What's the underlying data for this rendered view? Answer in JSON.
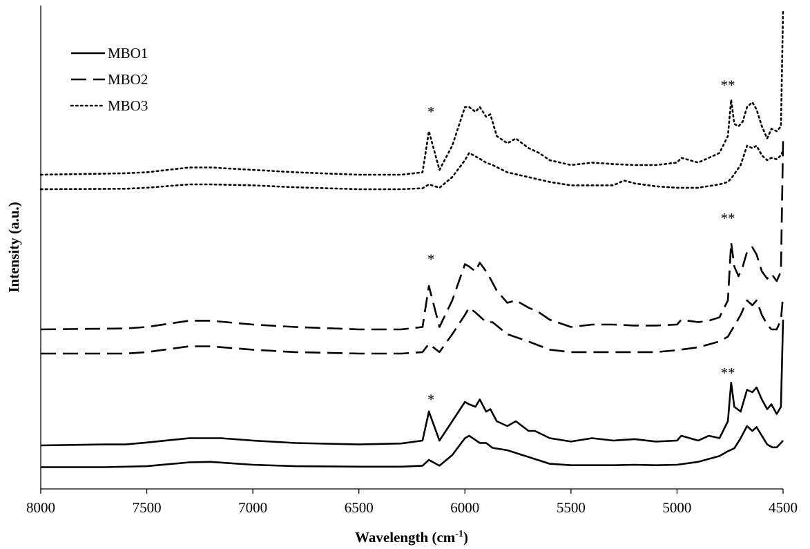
{
  "chart_data": {
    "type": "line",
    "title": "",
    "xlabel": {
      "text": "Wavelength (cm",
      "sup": "-1",
      "close": ")"
    },
    "ylabel": "Intensity (a.u.)",
    "xlim": [
      8000,
      4500
    ],
    "x_reversed": true,
    "ylim": [
      0,
      100
    ],
    "y_ticks_shown": false,
    "grid": false,
    "legend_position": "top-left",
    "x_ticks": [
      "8000",
      "7500",
      "7000",
      "6500",
      "6000",
      "5500",
      "5000",
      "4500"
    ],
    "x_tick_values": [
      8000,
      7500,
      7000,
      6500,
      6000,
      5500,
      5000,
      4500
    ],
    "legend": [
      {
        "label": "MBO1",
        "dash": "solid"
      },
      {
        "label": "MBO2",
        "dash": "dashed"
      },
      {
        "label": "MBO3",
        "dash": "dotted"
      }
    ],
    "series": [
      {
        "name": "MBO1",
        "dash": "solid",
        "points": [
          [
            8000,
            4.5
          ],
          [
            7700,
            4.5
          ],
          [
            7500,
            4.7
          ],
          [
            7300,
            5.5
          ],
          [
            7200,
            5.6
          ],
          [
            7000,
            5.0
          ],
          [
            6800,
            4.7
          ],
          [
            6500,
            4.6
          ],
          [
            6300,
            4.6
          ],
          [
            6200,
            4.8
          ],
          [
            6170,
            6.0
          ],
          [
            6120,
            4.8
          ],
          [
            6060,
            7.0
          ],
          [
            6000,
            10.5
          ],
          [
            5980,
            11.0
          ],
          [
            5930,
            9.5
          ],
          [
            5900,
            9.5
          ],
          [
            5870,
            8.5
          ],
          [
            5800,
            8.0
          ],
          [
            5700,
            6.6
          ],
          [
            5600,
            5.2
          ],
          [
            5500,
            4.9
          ],
          [
            5300,
            4.9
          ],
          [
            5200,
            5.0
          ],
          [
            5100,
            4.9
          ],
          [
            5000,
            5.0
          ],
          [
            4900,
            5.6
          ],
          [
            4800,
            6.8
          ],
          [
            4760,
            7.8
          ],
          [
            4730,
            8.4
          ],
          [
            4700,
            10.5
          ],
          [
            4670,
            13.0
          ],
          [
            4645,
            12.0
          ],
          [
            4625,
            12.8
          ],
          [
            4600,
            11.0
          ],
          [
            4575,
            9.2
          ],
          [
            4550,
            8.6
          ],
          [
            4530,
            8.6
          ],
          [
            4510,
            9.5
          ],
          [
            4500,
            10.0
          ]
        ]
      },
      {
        "name": "MBO1",
        "dash": "solid",
        "points": [
          [
            8000,
            9.0
          ],
          [
            7700,
            9.2
          ],
          [
            7600,
            9.2
          ],
          [
            7500,
            9.6
          ],
          [
            7300,
            10.5
          ],
          [
            7150,
            10.5
          ],
          [
            7000,
            10.0
          ],
          [
            6800,
            9.5
          ],
          [
            6500,
            9.2
          ],
          [
            6300,
            9.4
          ],
          [
            6200,
            10.0
          ],
          [
            6170,
            16.0
          ],
          [
            6120,
            10.0
          ],
          [
            6060,
            14.0
          ],
          [
            6000,
            18.0
          ],
          [
            5980,
            17.5
          ],
          [
            5950,
            17.0
          ],
          [
            5930,
            18.5
          ],
          [
            5900,
            16.0
          ],
          [
            5880,
            16.5
          ],
          [
            5850,
            14.0
          ],
          [
            5800,
            13.0
          ],
          [
            5760,
            14.0
          ],
          [
            5700,
            12.0
          ],
          [
            5670,
            12.0
          ],
          [
            5600,
            10.5
          ],
          [
            5500,
            9.8
          ],
          [
            5400,
            10.5
          ],
          [
            5300,
            10.0
          ],
          [
            5200,
            10.3
          ],
          [
            5100,
            9.8
          ],
          [
            5000,
            10.0
          ],
          [
            4980,
            11.0
          ],
          [
            4900,
            10.0
          ],
          [
            4850,
            11.0
          ],
          [
            4800,
            10.5
          ],
          [
            4760,
            14.0
          ],
          [
            4745,
            22.0
          ],
          [
            4730,
            17.0
          ],
          [
            4700,
            16.0
          ],
          [
            4670,
            20.5
          ],
          [
            4645,
            20.0
          ],
          [
            4625,
            21.0
          ],
          [
            4600,
            18.5
          ],
          [
            4575,
            16.5
          ],
          [
            4555,
            17.5
          ],
          [
            4530,
            15.5
          ],
          [
            4510,
            17.0
          ],
          [
            4500,
            35.0
          ]
        ]
      },
      {
        "name": "MBO2",
        "dash": "dashed",
        "points": [
          [
            8000,
            28.0
          ],
          [
            7600,
            28.0
          ],
          [
            7500,
            28.3
          ],
          [
            7300,
            29.5
          ],
          [
            7200,
            29.5
          ],
          [
            7000,
            28.8
          ],
          [
            6800,
            28.3
          ],
          [
            6500,
            28.0
          ],
          [
            6300,
            28.0
          ],
          [
            6200,
            28.3
          ],
          [
            6170,
            30.0
          ],
          [
            6120,
            28.3
          ],
          [
            6060,
            32.0
          ],
          [
            6000,
            36.0
          ],
          [
            5980,
            37.5
          ],
          [
            5950,
            36.5
          ],
          [
            5900,
            34.5
          ],
          [
            5870,
            34.5
          ],
          [
            5800,
            32.0
          ],
          [
            5700,
            30.5
          ],
          [
            5600,
            28.8
          ],
          [
            5500,
            28.3
          ],
          [
            5300,
            28.3
          ],
          [
            5200,
            28.3
          ],
          [
            5100,
            28.3
          ],
          [
            5000,
            28.7
          ],
          [
            4900,
            29.3
          ],
          [
            4800,
            30.5
          ],
          [
            4760,
            31.5
          ],
          [
            4740,
            33.0
          ],
          [
            4700,
            36.0
          ],
          [
            4670,
            39.0
          ],
          [
            4645,
            38.0
          ],
          [
            4625,
            39.0
          ],
          [
            4600,
            36.0
          ],
          [
            4575,
            34.0
          ],
          [
            4555,
            33.0
          ],
          [
            4530,
            33.0
          ],
          [
            4510,
            35.0
          ],
          [
            4500,
            40.0
          ]
        ]
      },
      {
        "name": "MBO2",
        "dash": "dashed",
        "points": [
          [
            8000,
            33.0
          ],
          [
            7600,
            33.2
          ],
          [
            7500,
            33.5
          ],
          [
            7300,
            34.8
          ],
          [
            7200,
            34.8
          ],
          [
            7000,
            34.0
          ],
          [
            6800,
            33.5
          ],
          [
            6500,
            33.0
          ],
          [
            6300,
            33.0
          ],
          [
            6200,
            33.5
          ],
          [
            6170,
            42.0
          ],
          [
            6120,
            33.5
          ],
          [
            6060,
            39.0
          ],
          [
            6000,
            46.5
          ],
          [
            5980,
            46.0
          ],
          [
            5950,
            45.0
          ],
          [
            5930,
            46.8
          ],
          [
            5900,
            45.0
          ],
          [
            5880,
            43.5
          ],
          [
            5850,
            41.0
          ],
          [
            5800,
            38.5
          ],
          [
            5760,
            39.0
          ],
          [
            5700,
            37.5
          ],
          [
            5650,
            36.5
          ],
          [
            5600,
            35.0
          ],
          [
            5500,
            33.5
          ],
          [
            5400,
            34.0
          ],
          [
            5300,
            34.0
          ],
          [
            5200,
            33.8
          ],
          [
            5100,
            33.8
          ],
          [
            5000,
            34.0
          ],
          [
            4980,
            35.0
          ],
          [
            4900,
            34.5
          ],
          [
            4850,
            34.8
          ],
          [
            4800,
            35.5
          ],
          [
            4760,
            39.0
          ],
          [
            4745,
            51.0
          ],
          [
            4730,
            46.0
          ],
          [
            4710,
            44.0
          ],
          [
            4690,
            46.0
          ],
          [
            4670,
            49.0
          ],
          [
            4645,
            50.0
          ],
          [
            4625,
            48.5
          ],
          [
            4600,
            45.0
          ],
          [
            4575,
            43.5
          ],
          [
            4555,
            44.5
          ],
          [
            4530,
            43.0
          ],
          [
            4510,
            45.0
          ],
          [
            4500,
            72.0
          ]
        ]
      },
      {
        "name": "MBO3",
        "dash": "dotted",
        "points": [
          [
            8000,
            62.0
          ],
          [
            7600,
            62.1
          ],
          [
            7500,
            62.3
          ],
          [
            7300,
            63.0
          ],
          [
            7200,
            63.0
          ],
          [
            7000,
            62.8
          ],
          [
            6800,
            62.4
          ],
          [
            6500,
            62.0
          ],
          [
            6300,
            62.0
          ],
          [
            6200,
            62.2
          ],
          [
            6170,
            63.0
          ],
          [
            6120,
            62.3
          ],
          [
            6060,
            64.5
          ],
          [
            6000,
            68.0
          ],
          [
            5980,
            69.5
          ],
          [
            5950,
            68.8
          ],
          [
            5900,
            67.5
          ],
          [
            5870,
            67.0
          ],
          [
            5800,
            65.5
          ],
          [
            5700,
            64.5
          ],
          [
            5600,
            63.5
          ],
          [
            5500,
            62.8
          ],
          [
            5300,
            62.8
          ],
          [
            5250,
            63.8
          ],
          [
            5200,
            63.2
          ],
          [
            5100,
            62.6
          ],
          [
            5000,
            62.3
          ],
          [
            4900,
            62.3
          ],
          [
            4800,
            63.0
          ],
          [
            4760,
            63.5
          ],
          [
            4740,
            64.5
          ],
          [
            4700,
            67.0
          ],
          [
            4670,
            71.0
          ],
          [
            4645,
            70.5
          ],
          [
            4625,
            71.0
          ],
          [
            4600,
            69.0
          ],
          [
            4575,
            68.0
          ],
          [
            4555,
            68.5
          ],
          [
            4530,
            68.2
          ],
          [
            4510,
            69.0
          ],
          [
            4500,
            70.0
          ]
        ]
      },
      {
        "name": "MBO3",
        "dash": "dotted",
        "points": [
          [
            8000,
            65.0
          ],
          [
            7600,
            65.3
          ],
          [
            7500,
            65.5
          ],
          [
            7300,
            66.5
          ],
          [
            7200,
            66.5
          ],
          [
            7000,
            66.0
          ],
          [
            6800,
            65.5
          ],
          [
            6500,
            65.0
          ],
          [
            6300,
            65.0
          ],
          [
            6200,
            65.5
          ],
          [
            6170,
            74.0
          ],
          [
            6120,
            66.0
          ],
          [
            6060,
            71.0
          ],
          [
            6000,
            79.0
          ],
          [
            5980,
            79.0
          ],
          [
            5950,
            78.0
          ],
          [
            5930,
            79.0
          ],
          [
            5900,
            77.0
          ],
          [
            5880,
            77.5
          ],
          [
            5850,
            73.0
          ],
          [
            5800,
            71.5
          ],
          [
            5760,
            72.5
          ],
          [
            5700,
            70.5
          ],
          [
            5650,
            69.5
          ],
          [
            5600,
            68.0
          ],
          [
            5500,
            67.0
          ],
          [
            5400,
            67.5
          ],
          [
            5300,
            67.2
          ],
          [
            5200,
            67.0
          ],
          [
            5100,
            67.0
          ],
          [
            5000,
            67.5
          ],
          [
            4980,
            68.5
          ],
          [
            4900,
            67.5
          ],
          [
            4850,
            68.5
          ],
          [
            4800,
            69.5
          ],
          [
            4760,
            73.0
          ],
          [
            4745,
            80.5
          ],
          [
            4730,
            75.5
          ],
          [
            4710,
            75.0
          ],
          [
            4690,
            76.0
          ],
          [
            4670,
            79.0
          ],
          [
            4645,
            80.0
          ],
          [
            4625,
            78.5
          ],
          [
            4600,
            75.0
          ],
          [
            4575,
            72.5
          ],
          [
            4555,
            74.5
          ],
          [
            4530,
            74.0
          ],
          [
            4510,
            75.0
          ],
          [
            4500,
            99.0
          ]
        ]
      }
    ],
    "annotations": [
      {
        "text": "*",
        "x": 6160,
        "y": 77.0
      },
      {
        "text": "**",
        "x": 4760,
        "y": 82.5
      },
      {
        "text": "*",
        "x": 6160,
        "y": 46.5
      },
      {
        "text": "**",
        "x": 4760,
        "y": 55.0
      },
      {
        "text": "*",
        "x": 6160,
        "y": 17.5
      },
      {
        "text": "**",
        "x": 4760,
        "y": 23.0
      }
    ]
  }
}
